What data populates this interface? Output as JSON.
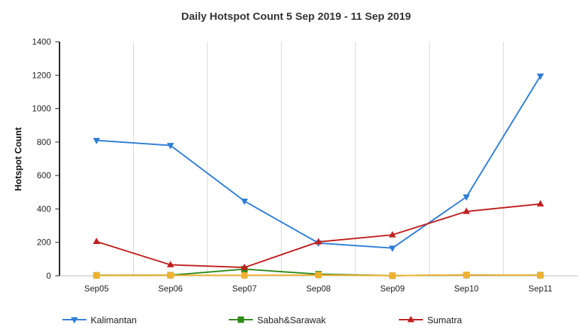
{
  "chart_data": {
    "type": "line",
    "title": "Daily Hotspot Count 5 Sep 2019 - 11 Sep 2019",
    "xlabel": "",
    "ylabel": "Hotspot Count",
    "categories": [
      "Sep05",
      "Sep06",
      "Sep07",
      "Sep08",
      "Sep09",
      "Sep10",
      "Sep11"
    ],
    "ylim": [
      0,
      1400
    ],
    "yticks": [
      0,
      200,
      400,
      600,
      800,
      1000,
      1200,
      1400
    ],
    "grid": "vertical",
    "legend_position": "bottom",
    "series": [
      {
        "name": "Kalimantan",
        "color": "#2f7ed8",
        "marker": "triangle-down",
        "values": [
          810,
          780,
          447,
          196,
          166,
          472,
          1195
        ]
      },
      {
        "name": "Sabah&Sarawak",
        "color": "#2e8b1a",
        "marker": "square",
        "values": [
          3,
          4,
          40,
          10,
          1,
          5,
          4
        ]
      },
      {
        "name": "Sumatra",
        "color": "#c01f1f",
        "marker": "triangle-up",
        "values": [
          205,
          66,
          50,
          203,
          245,
          385,
          430
        ]
      },
      {
        "name": "",
        "color": "#f0b030",
        "marker": "square",
        "values": [
          2,
          3,
          3,
          5,
          1,
          6,
          3
        ]
      }
    ]
  }
}
